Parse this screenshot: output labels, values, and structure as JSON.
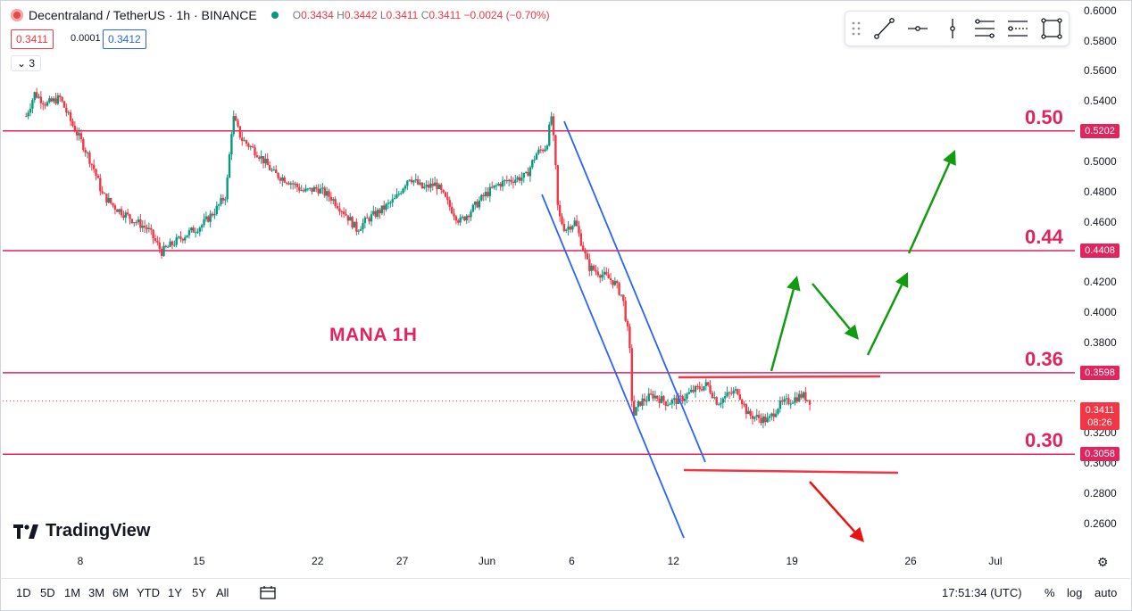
{
  "header": {
    "symbol": "Decentraland / TetherUS · 1h · BINANCE",
    "o_label": "O",
    "o": "0.3434",
    "h_label": "H",
    "h": "0.3442",
    "l_label": "L",
    "l": "0.3411",
    "c_label": "C",
    "c": "0.3411",
    "change": "−0.0024 (−0.70%)",
    "bid": "0.3411",
    "spread": "0.0001",
    "ask": "0.3412",
    "indicator_count": "3"
  },
  "colors": {
    "level": "#e0245e",
    "channel": "#2962ff",
    "up": "#089981",
    "down": "#f23645",
    "arrow_green": "#119b11",
    "arrow_red": "#ee1111"
  },
  "toolbar_icons": [
    "drag-handle-icon",
    "trend-line-icon",
    "horizontal-ray-icon",
    "vertical-line-icon",
    "parallel-channel-icon",
    "fib-retracement-icon",
    "rectangle-icon"
  ],
  "chart_data": {
    "type": "candlestick",
    "title": "MANA 1H",
    "ylim": [
      0.245,
      0.607
    ],
    "y_ticks": [
      "0.6000",
      "0.5800",
      "0.5600",
      "0.5400",
      "0.5000",
      "0.4800",
      "0.4600",
      "0.4200",
      "0.4000",
      "0.3800",
      "0.3200",
      "0.3000",
      "0.2800",
      "0.2600"
    ],
    "x_ticks": [
      {
        "label": "8",
        "day": 8
      },
      {
        "label": "15",
        "day": 15
      },
      {
        "label": "22",
        "day": 22
      },
      {
        "label": "27",
        "day": 27
      },
      {
        "label": "Jun",
        "day": 32
      },
      {
        "label": "6",
        "day": 37
      },
      {
        "label": "12",
        "day": 43
      },
      {
        "label": "19",
        "day": 50
      },
      {
        "label": "26",
        "day": 57
      },
      {
        "label": "Jul",
        "day": 62
      }
    ],
    "price_path": [
      [
        4.8,
        0.53
      ],
      [
        5.3,
        0.545
      ],
      [
        6.0,
        0.538
      ],
      [
        6.8,
        0.542
      ],
      [
        7.5,
        0.525
      ],
      [
        8.2,
        0.51
      ],
      [
        8.8,
        0.495
      ],
      [
        9.3,
        0.478
      ],
      [
        10.0,
        0.47
      ],
      [
        11.0,
        0.462
      ],
      [
        12.0,
        0.455
      ],
      [
        12.8,
        0.44
      ],
      [
        13.4,
        0.445
      ],
      [
        14.3,
        0.452
      ],
      [
        15.2,
        0.458
      ],
      [
        16.0,
        0.468
      ],
      [
        16.6,
        0.478
      ],
      [
        17.0,
        0.53
      ],
      [
        17.5,
        0.515
      ],
      [
        18.5,
        0.505
      ],
      [
        19.4,
        0.492
      ],
      [
        20.3,
        0.487
      ],
      [
        21.2,
        0.48
      ],
      [
        22.0,
        0.482
      ],
      [
        22.8,
        0.476
      ],
      [
        23.6,
        0.466
      ],
      [
        24.3,
        0.455
      ],
      [
        25.0,
        0.462
      ],
      [
        25.8,
        0.468
      ],
      [
        26.6,
        0.475
      ],
      [
        27.4,
        0.49
      ],
      [
        28.2,
        0.482
      ],
      [
        29.0,
        0.485
      ],
      [
        29.8,
        0.47
      ],
      [
        30.4,
        0.46
      ],
      [
        31.1,
        0.468
      ],
      [
        31.9,
        0.478
      ],
      [
        32.7,
        0.485
      ],
      [
        33.5,
        0.488
      ],
      [
        34.3,
        0.49
      ],
      [
        34.9,
        0.505
      ],
      [
        35.5,
        0.51
      ],
      [
        35.8,
        0.53
      ],
      [
        36.0,
        0.505
      ],
      [
        36.2,
        0.465
      ],
      [
        36.6,
        0.455
      ],
      [
        37.2,
        0.46
      ],
      [
        37.6,
        0.445
      ],
      [
        38.0,
        0.43
      ],
      [
        38.8,
        0.425
      ],
      [
        39.5,
        0.42
      ],
      [
        40.0,
        0.41
      ],
      [
        40.4,
        0.38
      ],
      [
        40.6,
        0.33
      ],
      [
        41.0,
        0.34
      ],
      [
        41.8,
        0.345
      ],
      [
        42.6,
        0.34
      ],
      [
        43.4,
        0.342
      ],
      [
        44.2,
        0.348
      ],
      [
        45.0,
        0.352
      ],
      [
        45.6,
        0.34
      ],
      [
        46.2,
        0.345
      ],
      [
        46.8,
        0.348
      ],
      [
        47.4,
        0.332
      ],
      [
        48.0,
        0.33
      ],
      [
        48.6,
        0.328
      ],
      [
        49.2,
        0.338
      ],
      [
        50.0,
        0.342
      ],
      [
        50.6,
        0.345
      ],
      [
        51.1,
        0.341
      ]
    ],
    "levels": [
      {
        "label": "0.50",
        "value": 0.5202,
        "tag": "0.5202"
      },
      {
        "label": "0.44",
        "value": 0.4408,
        "tag": "0.4408"
      },
      {
        "label": "0.36",
        "value": 0.3598,
        "tag": "0.3598"
      },
      {
        "label": "0.30",
        "value": 0.3058,
        "tag": "0.3058"
      }
    ],
    "last_price": "0.3411",
    "countdown": "08:26"
  },
  "branding": {
    "logo_text": "TradingView"
  },
  "bottom_bar": {
    "ranges": [
      "1D",
      "5D",
      "1M",
      "3M",
      "6M",
      "YTD",
      "1Y",
      "5Y",
      "All"
    ],
    "time": "17:51:34 (UTC)",
    "percent": "%",
    "log": "log",
    "auto": "auto"
  }
}
